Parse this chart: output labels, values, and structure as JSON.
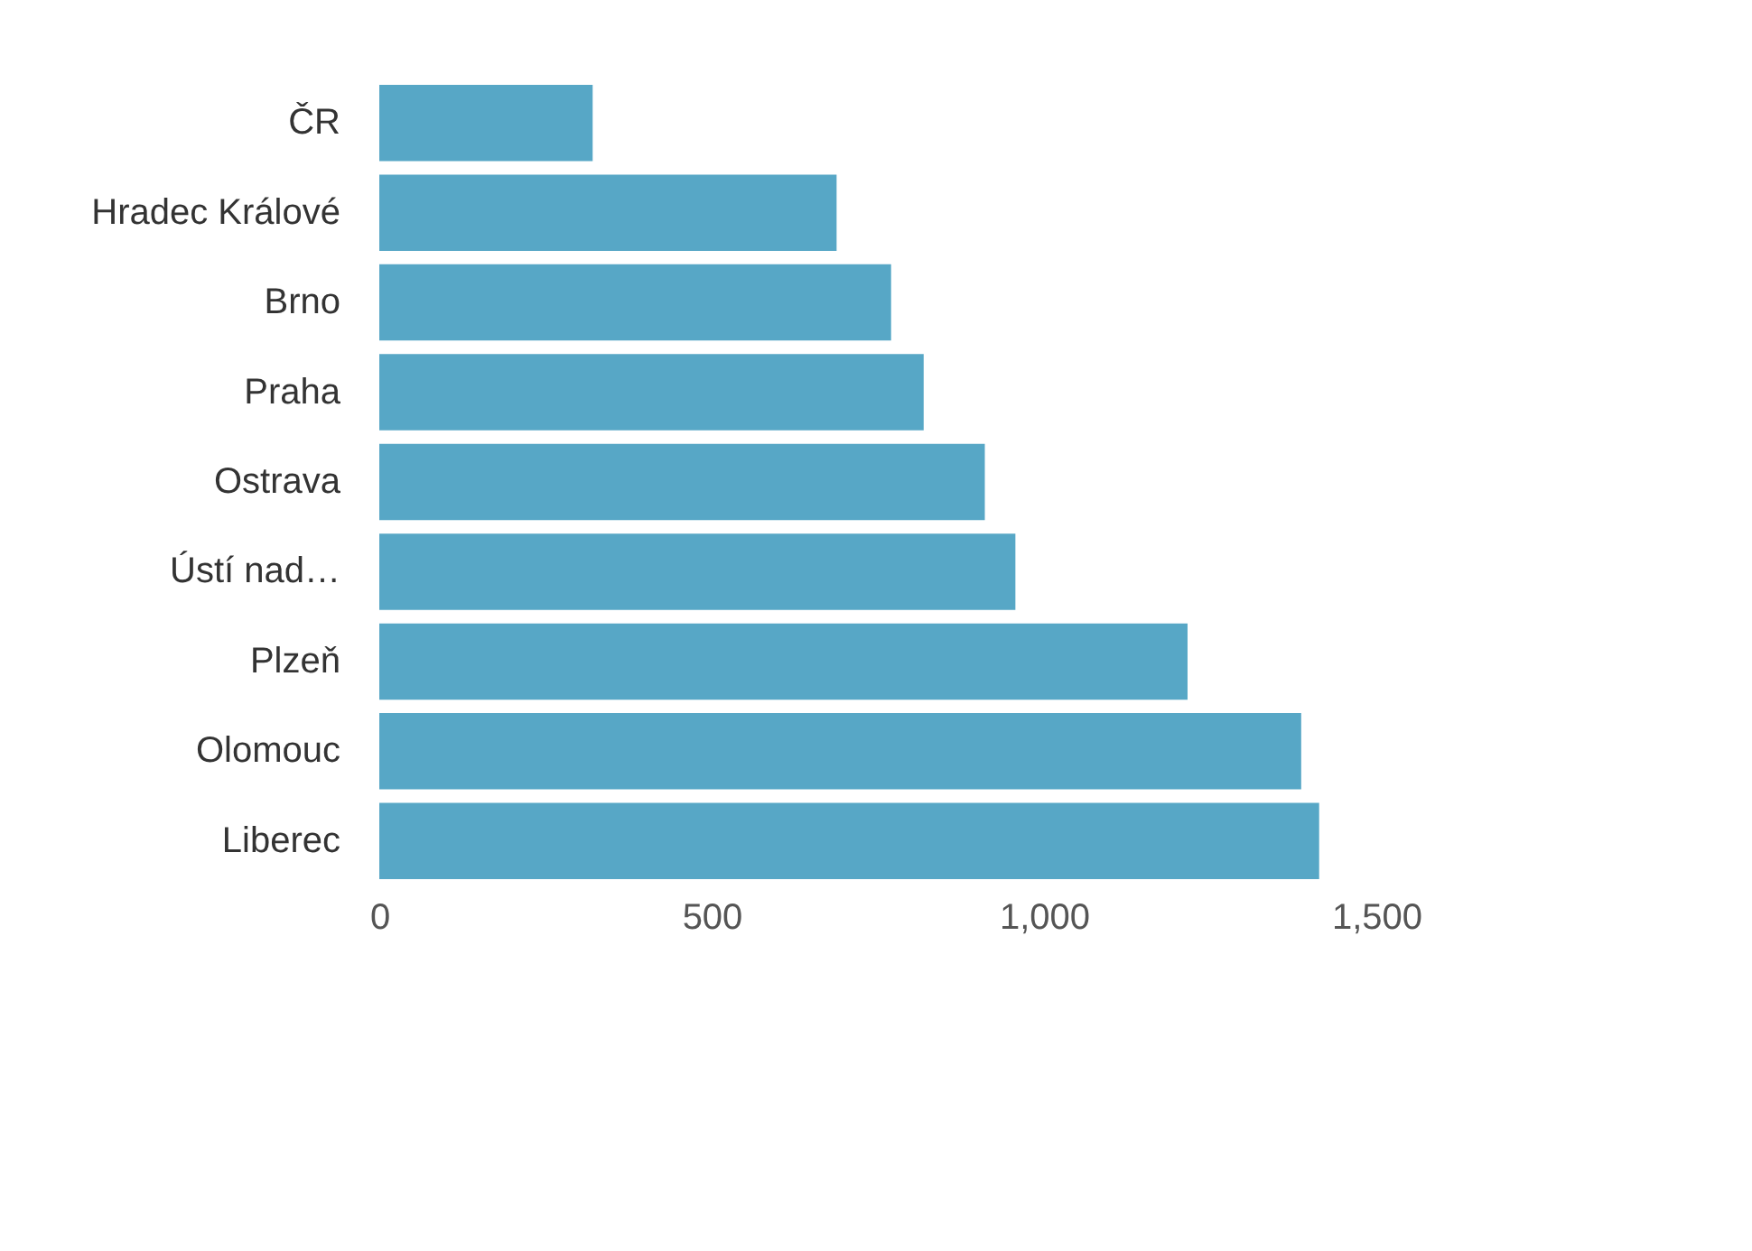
{
  "chart_data": {
    "type": "bar",
    "orientation": "horizontal",
    "categories": [
      "ČR",
      "Hradec Králové",
      "Brno",
      "Praha",
      "Ostrava",
      "Ústí nad…",
      "Plzeň",
      "Olomouc",
      "Liberec"
    ],
    "values": [
      321,
      688,
      770,
      819,
      911,
      957,
      1216,
      1387,
      1414
    ],
    "color": "#57a7c6",
    "xlim": [
      0,
      1500
    ],
    "xticks": [
      0,
      {
        "value": 500,
        "label": "500"
      },
      {
        "value": 1000,
        "label": "1,000"
      },
      {
        "value": 1500,
        "label": "1,500"
      }
    ],
    "grid": false
  }
}
